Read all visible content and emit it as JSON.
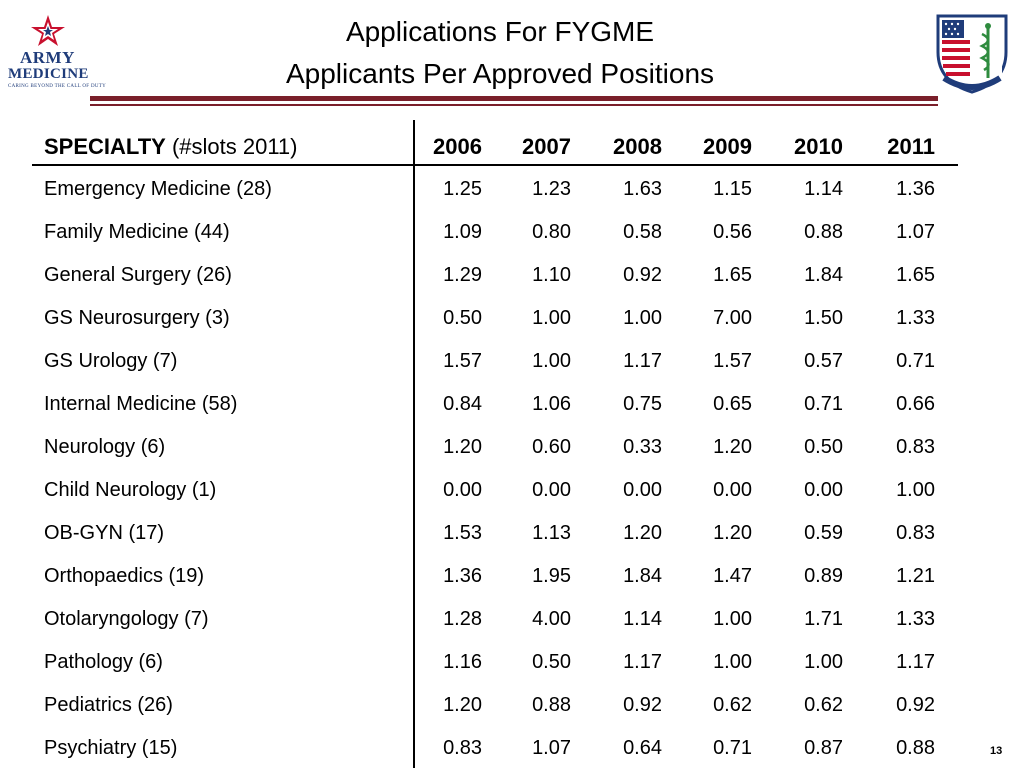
{
  "header": {
    "logo_line1": "ARMY",
    "logo_line2": "MEDICINE",
    "logo_tagline": "CARING BEYOND THE CALL OF DUTY",
    "title_line1": "Applications For FYGME",
    "title_line2": "Applicants Per Approved Positions"
  },
  "table": {
    "specialty_label": "SPECIALTY",
    "slots_label": "(#slots 2011)",
    "years": [
      "2006",
      "2007",
      "2008",
      "2009",
      "2010",
      "2011"
    ],
    "rows": [
      {
        "name": "Emergency Medicine (28)",
        "values": [
          "1.25",
          "1.23",
          "1.63",
          "1.15",
          "1.14",
          "1.36"
        ]
      },
      {
        "name": "Family Medicine (44)",
        "values": [
          "1.09",
          "0.80",
          "0.58",
          "0.56",
          "0.88",
          "1.07"
        ]
      },
      {
        "name": "General Surgery (26)",
        "values": [
          "1.29",
          "1.10",
          "0.92",
          "1.65",
          "1.84",
          "1.65"
        ]
      },
      {
        "name": "GS Neurosurgery (3)",
        "values": [
          "0.50",
          "1.00",
          "1.00",
          "7.00",
          "1.50",
          "1.33"
        ]
      },
      {
        "name": "GS Urology (7)",
        "values": [
          "1.57",
          "1.00",
          "1.17",
          "1.57",
          "0.57",
          "0.71"
        ]
      },
      {
        "name": "Internal Medicine (58)",
        "values": [
          "0.84",
          "1.06",
          "0.75",
          "0.65",
          "0.71",
          "0.66"
        ]
      },
      {
        "name": "Neurology (6)",
        "values": [
          "1.20",
          "0.60",
          "0.33",
          "1.20",
          "0.50",
          "0.83"
        ]
      },
      {
        "name": "Child Neurology (1)",
        "values": [
          "0.00",
          "0.00",
          "0.00",
          "0.00",
          "0.00",
          "1.00"
        ]
      },
      {
        "name": "OB-GYN (17)",
        "values": [
          "1.53",
          "1.13",
          "1.20",
          "1.20",
          "0.59",
          "0.83"
        ]
      },
      {
        "name": "Orthopaedics (19)",
        "values": [
          "1.36",
          "1.95",
          "1.84",
          "1.47",
          "0.89",
          "1.21"
        ]
      },
      {
        "name": "Otolaryngology (7)",
        "values": [
          "1.28",
          "4.00",
          "1.14",
          "1.00",
          "1.71",
          "1.33"
        ]
      },
      {
        "name": "Pathology (6)",
        "values": [
          "1.16",
          "0.50",
          "1.17",
          "1.00",
          "1.00",
          "1.17"
        ]
      },
      {
        "name": "Pediatrics (26)",
        "values": [
          "1.20",
          "0.88",
          "0.92",
          "0.62",
          "0.62",
          "0.92"
        ]
      },
      {
        "name": "Psychiatry (15)",
        "values": [
          "0.83",
          "1.07",
          "0.64",
          "0.71",
          "0.87",
          "0.88"
        ]
      }
    ]
  },
  "page_number": "13",
  "colors": {
    "accent": "#7a1f2a",
    "brand_blue": "#1f3c7a",
    "flag_red": "#c8102e",
    "crest_green": "#2e8b3e"
  },
  "icons": {
    "left_logo": "army-medicine-star-logo",
    "right_logo": "medical-corps-crest-icon"
  }
}
